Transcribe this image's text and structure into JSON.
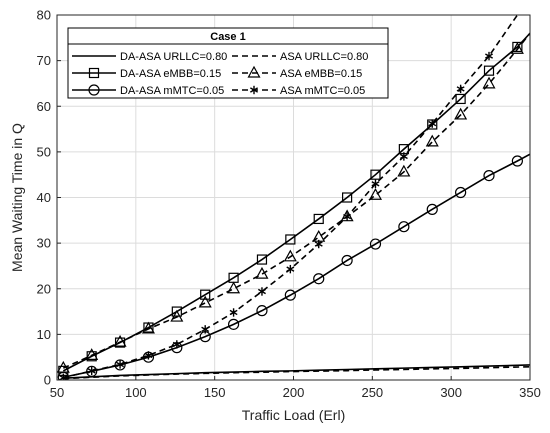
{
  "chart_data": {
    "type": "line",
    "xlabel": "Traffic Load (Erl)",
    "ylabel": "Mean Waiting Time in Q",
    "xlim": [
      50,
      350
    ],
    "ylim": [
      0,
      80
    ],
    "xticks": [
      50,
      100,
      150,
      200,
      250,
      300,
      350
    ],
    "yticks": [
      0,
      10,
      20,
      30,
      40,
      50,
      60,
      70,
      80
    ],
    "grid": true,
    "legend": {
      "title": "Case 1",
      "placement": "top-left",
      "columns": 2
    },
    "series": [
      {
        "name": "DA-ASA URLLC=0.80",
        "line": "solid",
        "marker": "none",
        "x": [
          54,
          72,
          90,
          108,
          126,
          144,
          162,
          180,
          198,
          216,
          234,
          252,
          270,
          288,
          306,
          324,
          350
        ],
        "y": [
          0.4,
          0.7,
          1.0,
          1.2,
          1.4,
          1.6,
          1.75,
          1.9,
          2.0,
          2.15,
          2.3,
          2.45,
          2.6,
          2.75,
          2.9,
          3.05,
          3.3
        ]
      },
      {
        "name": "ASA URLLC=0.80",
        "line": "dashed",
        "marker": "none",
        "x": [
          54,
          72,
          90,
          108,
          126,
          144,
          162,
          180,
          198,
          216,
          234,
          252,
          270,
          288,
          306,
          324,
          350
        ],
        "y": [
          0.3,
          0.6,
          0.9,
          1.1,
          1.3,
          1.45,
          1.6,
          1.7,
          1.85,
          1.95,
          2.05,
          2.2,
          2.3,
          2.45,
          2.55,
          2.7,
          2.9
        ]
      },
      {
        "name": "DA-ASA eMBB=0.15",
        "line": "solid",
        "marker": "square",
        "x": [
          54,
          72,
          90,
          108,
          126,
          144,
          162,
          180,
          198,
          216,
          234,
          252,
          270,
          288,
          306,
          324,
          342,
          350
        ],
        "y": [
          2.0,
          5.2,
          8.2,
          11.5,
          15.0,
          18.7,
          22.4,
          26.4,
          30.8,
          35.3,
          40.0,
          45.0,
          50.6,
          56.0,
          61.6,
          67.8,
          73.0,
          76.0
        ],
        "marker_x": [
          54,
          72,
          90,
          108,
          126,
          144,
          162,
          180,
          198,
          216,
          234,
          252,
          270,
          288,
          306,
          324,
          342
        ]
      },
      {
        "name": "ASA eMBB=0.15",
        "line": "dashed",
        "marker": "triangle",
        "x": [
          54,
          72,
          90,
          108,
          126,
          144,
          162,
          180,
          198,
          216,
          234,
          252,
          270,
          288,
          306,
          324,
          342,
          350
        ],
        "y": [
          2.6,
          5.4,
          8.3,
          11.2,
          13.8,
          16.9,
          20.0,
          23.2,
          27.0,
          31.3,
          35.8,
          40.5,
          45.6,
          52.2,
          58.1,
          64.9,
          72.5,
          76.0
        ],
        "marker_x": [
          54,
          72,
          90,
          108,
          126,
          144,
          162,
          180,
          198,
          216,
          234,
          252,
          270,
          288,
          306,
          324,
          342
        ]
      },
      {
        "name": "DA-ASA mMTC=0.05",
        "line": "solid",
        "marker": "circle",
        "x": [
          54,
          72,
          90,
          108,
          126,
          144,
          162,
          180,
          198,
          216,
          234,
          252,
          270,
          288,
          306,
          324,
          342,
          350
        ],
        "y": [
          0.6,
          1.9,
          3.3,
          5.0,
          7.1,
          9.5,
          12.2,
          15.2,
          18.6,
          22.2,
          26.2,
          29.8,
          33.6,
          37.4,
          41.1,
          44.8,
          48.0,
          49.5
        ],
        "marker_x": [
          54,
          72,
          90,
          108,
          126,
          144,
          162,
          180,
          198,
          216,
          234,
          252,
          270,
          288,
          306,
          324,
          342
        ]
      },
      {
        "name": "ASA mMTC=0.05",
        "line": "dashed",
        "marker": "asterisk",
        "x": [
          54,
          72,
          90,
          108,
          126,
          144,
          162,
          180,
          198,
          216,
          234,
          252,
          270,
          288,
          306,
          324,
          342
        ],
        "y": [
          0.5,
          2.0,
          3.4,
          5.4,
          7.8,
          11.1,
          14.8,
          19.4,
          24.3,
          29.8,
          35.8,
          43.0,
          49.0,
          56.2,
          63.8,
          71.0,
          80.0
        ],
        "marker_x": [
          54,
          72,
          90,
          108,
          126,
          144,
          162,
          180,
          198,
          216,
          234,
          252,
          270,
          288,
          306,
          324
        ]
      }
    ]
  }
}
